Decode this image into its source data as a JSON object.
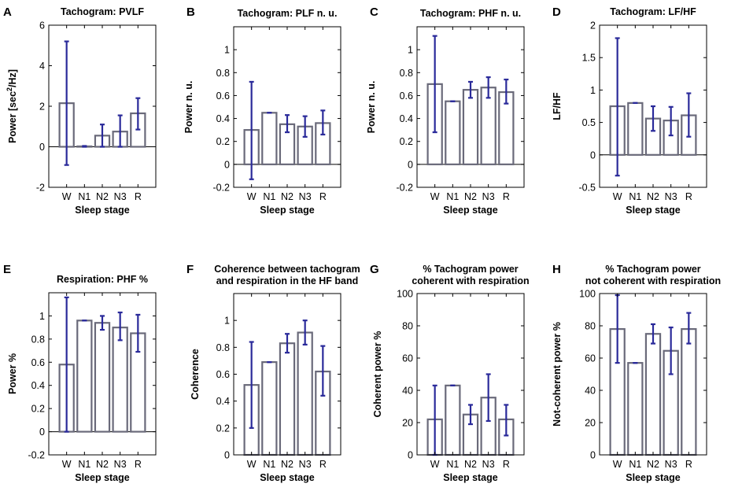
{
  "figure": {
    "colors": {
      "bar": "#6a6a7a",
      "error": "#2a2a9a",
      "axis": "#000000"
    },
    "xlabel": "Sleep stage"
  },
  "chart_data": [
    {
      "letter": "A",
      "type": "bar",
      "title": [
        "Tachogram: PVLF"
      ],
      "ylabel": "Power [sec²/Hz]",
      "ylabel_main": "Power [sec",
      "ylabel_sup": "2",
      "ylabel_end": "/Hz]",
      "xlabel": "Sleep stage",
      "categories": [
        "W",
        "N1",
        "N2",
        "N3",
        "R"
      ],
      "values": [
        2.15,
        0.02,
        0.55,
        0.75,
        1.65
      ],
      "err_low": [
        -0.9,
        0.0,
        0.0,
        0.0,
        0.85
      ],
      "err_high": [
        5.2,
        0.04,
        1.1,
        1.55,
        2.4
      ],
      "ylim": [
        -2,
        6
      ],
      "yticks": [
        -2,
        0,
        2,
        4,
        6
      ],
      "ytick_labels": [
        "-2",
        "0",
        "2",
        "4",
        "6"
      ]
    },
    {
      "letter": "B",
      "type": "bar",
      "title": [
        "Tachogram: PLF n. u."
      ],
      "ylabel": "Power n. u.",
      "xlabel": "Sleep stage",
      "categories": [
        "W",
        "N1",
        "N2",
        "N3",
        "R"
      ],
      "values": [
        0.3,
        0.45,
        0.35,
        0.33,
        0.36
      ],
      "err_low": [
        -0.13,
        0.45,
        0.28,
        0.24,
        0.26
      ],
      "err_high": [
        0.72,
        0.45,
        0.43,
        0.42,
        0.47
      ],
      "ylim": [
        -0.2,
        1.2
      ],
      "yticks": [
        -0.2,
        0,
        0.2,
        0.4,
        0.6,
        0.8,
        1
      ],
      "ytick_labels": [
        "-0.2",
        "0",
        "0.2",
        "0.4",
        "0.6",
        "0.8",
        "1"
      ]
    },
    {
      "letter": "C",
      "type": "bar",
      "title": [
        "Tachogram: PHF n. u."
      ],
      "ylabel": "Power n. u.",
      "xlabel": "Sleep stage",
      "categories": [
        "W",
        "N1",
        "N2",
        "N3",
        "R"
      ],
      "values": [
        0.7,
        0.55,
        0.65,
        0.67,
        0.63
      ],
      "err_low": [
        0.28,
        0.55,
        0.58,
        0.58,
        0.53
      ],
      "err_high": [
        1.12,
        0.55,
        0.72,
        0.76,
        0.74
      ],
      "ylim": [
        -0.2,
        1.2
      ],
      "yticks": [
        -0.2,
        0,
        0.2,
        0.4,
        0.6,
        0.8,
        1
      ],
      "ytick_labels": [
        "-0.2",
        "0",
        "0.2",
        "0.4",
        "0.6",
        "0.8",
        "1"
      ]
    },
    {
      "letter": "D",
      "type": "bar",
      "title": [
        "Tachogram: LF/HF"
      ],
      "ylabel": "LF/HF",
      "xlabel": "Sleep stage",
      "categories": [
        "W",
        "N1",
        "N2",
        "N3",
        "R"
      ],
      "values": [
        0.75,
        0.8,
        0.56,
        0.53,
        0.61
      ],
      "err_low": [
        -0.32,
        0.8,
        0.37,
        0.3,
        0.28
      ],
      "err_high": [
        1.8,
        0.8,
        0.75,
        0.74,
        0.95
      ],
      "ylim": [
        -0.5,
        2
      ],
      "yticks": [
        -0.5,
        0,
        0.5,
        1,
        1.5,
        2
      ],
      "ytick_labels": [
        "-0.5",
        "0",
        "0.5",
        "1",
        "1.5",
        "2"
      ]
    },
    {
      "letter": "E",
      "type": "bar",
      "title": [
        "Respiration: PHF %"
      ],
      "ylabel": "Power %",
      "xlabel": "Sleep stage",
      "categories": [
        "W",
        "N1",
        "N2",
        "N3",
        "R"
      ],
      "values": [
        0.58,
        0.96,
        0.94,
        0.9,
        0.85
      ],
      "err_low": [
        0.0,
        0.96,
        0.88,
        0.79,
        0.69
      ],
      "err_high": [
        1.16,
        0.96,
        1.0,
        1.03,
        1.01
      ],
      "ylim": [
        -0.2,
        1.2
      ],
      "yticks": [
        -0.2,
        0,
        0.2,
        0.4,
        0.6,
        0.8,
        1
      ],
      "ytick_labels": [
        "-0.2",
        "0",
        "0.2",
        "0.4",
        "0.6",
        "0.8",
        "1"
      ]
    },
    {
      "letter": "F",
      "type": "bar",
      "title": [
        "Coherence between tachogram",
        "and respiration in the HF band"
      ],
      "ylabel": "Coherence",
      "xlabel": "Sleep stage",
      "categories": [
        "W",
        "N1",
        "N2",
        "N3",
        "R"
      ],
      "values": [
        0.52,
        0.69,
        0.83,
        0.91,
        0.62
      ],
      "err_low": [
        0.2,
        0.69,
        0.76,
        0.82,
        0.44
      ],
      "err_high": [
        0.84,
        0.69,
        0.9,
        1.0,
        0.81
      ],
      "ylim": [
        0,
        1.2
      ],
      "yticks": [
        0,
        0.2,
        0.4,
        0.6,
        0.8,
        1
      ],
      "ytick_labels": [
        "0",
        "0.2",
        "0.4",
        "0.6",
        "0.8",
        "1"
      ]
    },
    {
      "letter": "G",
      "type": "bar",
      "title": [
        "% Tachogram power",
        "coherent with respiration"
      ],
      "ylabel": "Coherent power %",
      "xlabel": "Sleep stage",
      "categories": [
        "W",
        "N1",
        "N2",
        "N3",
        "R"
      ],
      "values": [
        22,
        43,
        25,
        35.5,
        22
      ],
      "err_low": [
        0,
        43,
        19,
        21,
        12
      ],
      "err_high": [
        43,
        43,
        31,
        50,
        31
      ],
      "ylim": [
        0,
        100
      ],
      "yticks": [
        0,
        20,
        40,
        60,
        80,
        100
      ],
      "ytick_labels": [
        "0",
        "20",
        "40",
        "60",
        "80",
        "100"
      ]
    },
    {
      "letter": "H",
      "type": "bar",
      "title": [
        "% Tachogram power",
        "not coherent with respiration"
      ],
      "ylabel": "Not-coherent power %",
      "xlabel": "Sleep stage",
      "categories": [
        "W",
        "N1",
        "N2",
        "N3",
        "R"
      ],
      "values": [
        78,
        57,
        75,
        64.5,
        78
      ],
      "err_low": [
        57,
        57,
        69,
        50,
        69
      ],
      "err_high": [
        99,
        57,
        81,
        79,
        88
      ],
      "ylim": [
        0,
        100
      ],
      "yticks": [
        0,
        20,
        40,
        60,
        80,
        100
      ],
      "ytick_labels": [
        "0",
        "20",
        "40",
        "60",
        "80",
        "100"
      ]
    }
  ]
}
